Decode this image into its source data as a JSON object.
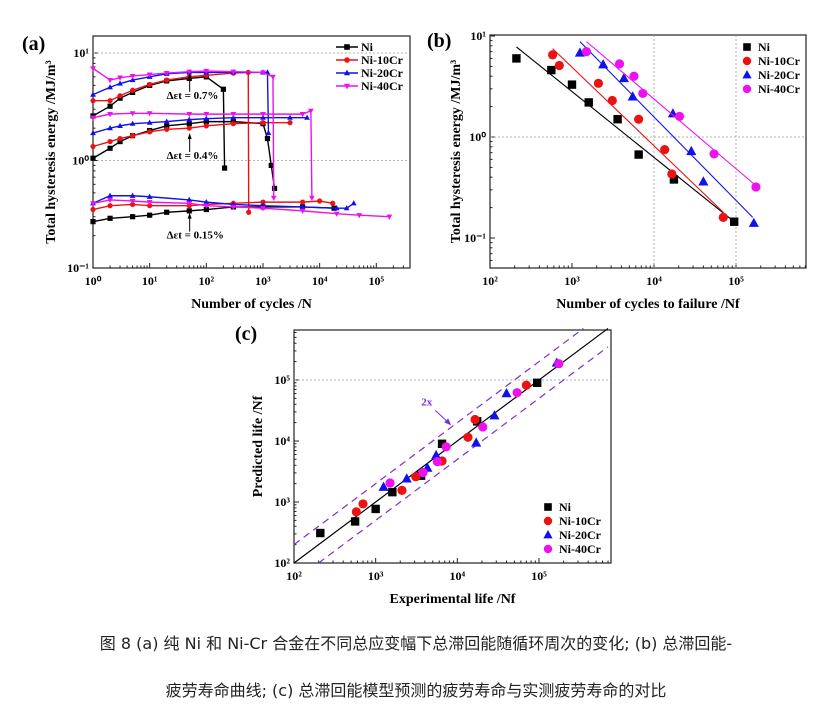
{
  "caption": {
    "line1": "图 8 (a)  纯 Ni 和 Ni-Cr 合金在不同总应变幅下总滞回能随循环周次的变化; (b)  总滞回能-",
    "line2": "疲劳寿命曲线; (c)  总滞回能模型预测的疲劳寿命与实测疲劳寿命的对比"
  },
  "colors": {
    "Ni": "#000000",
    "Ni-10Cr": "#ee1111",
    "Ni-20Cr": "#1111ee",
    "Ni-40Cr": "#ee11ee",
    "guide": "#7a2fd0"
  },
  "chart_data": [
    {
      "panel": "(a)",
      "type": "line",
      "xlabel": "Number of cycles /N",
      "ylabel": "Total hysteresis energy /MJ/m³",
      "xscale": "log",
      "yscale": "log",
      "xlim": [
        1,
        600000
      ],
      "ylim": [
        0.1,
        15
      ],
      "xticks": [
        "10⁰",
        "10¹",
        "10²",
        "10³",
        "10⁴",
        "10⁵"
      ],
      "yticks": [
        "10⁻¹",
        "10⁰",
        "10¹"
      ],
      "grid": "dotted at y=1 and y=10",
      "legend": {
        "position": "top-right",
        "entries": [
          "Ni",
          "Ni-10Cr",
          "Ni-20Cr",
          "Ni-40Cr"
        ]
      },
      "annotations": [
        {
          "text": "Δεt = 0.7%",
          "x": 45,
          "y": 4.0
        },
        {
          "text": "Δεt = 0.4%",
          "x": 45,
          "y": 1.1
        },
        {
          "text": "Δεt = 0.15%",
          "x": 45,
          "y": 0.2
        }
      ],
      "series": [
        {
          "name": "Ni",
          "strain": "0.7%",
          "x": [
            1,
            2,
            3,
            5,
            10,
            20,
            50,
            100,
            200,
            210
          ],
          "y": [
            2.6,
            3.2,
            3.8,
            4.3,
            5.0,
            5.5,
            5.8,
            6.0,
            4.6,
            0.85
          ]
        },
        {
          "name": "Ni",
          "strain": "0.4%",
          "x": [
            1,
            2,
            3,
            5,
            10,
            20,
            50,
            100,
            300,
            1000,
            1200,
            1400,
            1600
          ],
          "y": [
            1.05,
            1.3,
            1.5,
            1.7,
            1.9,
            2.1,
            2.2,
            2.3,
            2.3,
            2.2,
            1.6,
            0.9,
            0.55
          ]
        },
        {
          "name": "Ni",
          "strain": "0.15%",
          "x": [
            1,
            2,
            5,
            10,
            20,
            50,
            100,
            300,
            1000,
            5000,
            18000
          ],
          "y": [
            0.27,
            0.29,
            0.3,
            0.31,
            0.33,
            0.34,
            0.35,
            0.37,
            0.37,
            0.37,
            0.36
          ]
        },
        {
          "name": "Ni-10Cr",
          "strain": "0.7%",
          "x": [
            1,
            2,
            3,
            5,
            10,
            20,
            50,
            100,
            300,
            550,
            560
          ],
          "y": [
            3.6,
            3.6,
            4.0,
            4.5,
            5.1,
            5.6,
            6.0,
            6.2,
            6.5,
            6.6,
            0.33
          ]
        },
        {
          "name": "Ni-10Cr",
          "strain": "0.4%",
          "x": [
            1,
            2,
            3,
            5,
            10,
            20,
            50,
            100,
            300,
            1000,
            3000
          ],
          "y": [
            1.35,
            1.5,
            1.6,
            1.7,
            1.85,
            1.95,
            2.0,
            2.1,
            2.2,
            2.25,
            2.25
          ]
        },
        {
          "name": "Ni-10Cr",
          "strain": "0.15%",
          "x": [
            1,
            2,
            5,
            10,
            50,
            100,
            300,
            1000,
            5000,
            10000,
            17000
          ],
          "y": [
            0.35,
            0.38,
            0.39,
            0.38,
            0.38,
            0.39,
            0.4,
            0.41,
            0.41,
            0.42,
            0.4
          ]
        },
        {
          "name": "Ni-20Cr",
          "strain": "0.7%",
          "x": [
            1,
            2,
            3,
            5,
            10,
            20,
            50,
            100,
            300,
            1000,
            1200,
            1250
          ],
          "y": [
            4.1,
            4.8,
            5.2,
            5.6,
            6.0,
            6.4,
            6.6,
            6.6,
            6.6,
            6.6,
            6.6,
            1.8
          ]
        },
        {
          "name": "Ni-20Cr",
          "strain": "0.4%",
          "x": [
            1,
            2,
            3,
            5,
            10,
            20,
            50,
            100,
            300,
            1000,
            3000,
            6000
          ],
          "y": [
            1.8,
            2.0,
            2.1,
            2.2,
            2.25,
            2.3,
            2.4,
            2.45,
            2.5,
            2.5,
            2.5,
            2.5
          ]
        },
        {
          "name": "Ni-20Cr",
          "strain": "0.15%",
          "x": [
            1,
            2,
            5,
            10,
            50,
            100,
            300,
            1000,
            5000,
            20000,
            30000,
            40000
          ],
          "y": [
            0.4,
            0.47,
            0.47,
            0.46,
            0.43,
            0.41,
            0.39,
            0.38,
            0.37,
            0.36,
            0.36,
            0.4
          ]
        },
        {
          "name": "Ni-40Cr",
          "strain": "0.7%",
          "x": [
            1,
            2,
            3,
            5,
            10,
            20,
            50,
            100,
            300,
            1000,
            1500,
            1550
          ],
          "y": [
            7.2,
            5.6,
            5.9,
            6.1,
            6.3,
            6.5,
            6.7,
            6.8,
            6.7,
            6.6,
            6.0,
            0.45
          ]
        },
        {
          "name": "Ni-40Cr",
          "strain": "0.4%",
          "x": [
            1,
            2,
            5,
            10,
            50,
            100,
            300,
            1000,
            5000,
            7000,
            7300
          ],
          "y": [
            2.5,
            2.7,
            2.75,
            2.75,
            2.7,
            2.7,
            2.7,
            2.7,
            2.7,
            2.9,
            0.45
          ]
        },
        {
          "name": "Ni-40Cr",
          "strain": "0.15%",
          "x": [
            1,
            2,
            5,
            10,
            50,
            100,
            300,
            1000,
            5000,
            20000,
            50000,
            170000
          ],
          "y": [
            0.4,
            0.43,
            0.42,
            0.41,
            0.4,
            0.38,
            0.37,
            0.36,
            0.34,
            0.32,
            0.31,
            0.3
          ]
        }
      ]
    },
    {
      "panel": "(b)",
      "type": "scatter",
      "xlabel": "Number of cycles to failure /Nf",
      "ylabel": "Total hysteresis energy /MJ/m³",
      "xscale": "log",
      "yscale": "log",
      "xlim": [
        100,
        700000
      ],
      "ylim": [
        0.05,
        10
      ],
      "xticks": [
        "10²",
        "10³",
        "10⁴",
        "10⁵"
      ],
      "yticks": [
        "10⁻¹",
        "10⁰",
        "10¹"
      ],
      "grid": "dotted at x=1e4, x=1e5, y=1",
      "legend": {
        "position": "top-right",
        "entries": [
          "Ni",
          "Ni-10Cr",
          "Ni-20Cr",
          "Ni-40Cr"
        ]
      },
      "series": [
        {
          "name": "Ni",
          "marker": "square",
          "x": [
            210,
            560,
            1000,
            1600,
            3600,
            6500,
            17500,
            95000
          ],
          "y": [
            6.0,
            4.6,
            3.3,
            2.2,
            1.5,
            0.67,
            0.38,
            0.145
          ],
          "fit": [
            [
              210,
              7.8
            ],
            [
              90000,
              0.15
            ]
          ]
        },
        {
          "name": "Ni-10Cr",
          "marker": "circle",
          "x": [
            580,
            700,
            2100,
            3100,
            6500,
            13500,
            16500,
            70000
          ],
          "y": [
            6.5,
            5.1,
            3.4,
            2.3,
            1.5,
            0.75,
            0.43,
            0.16
          ],
          "fit": [
            [
              580,
              7.5
            ],
            [
              70000,
              0.18
            ]
          ]
        },
        {
          "name": "Ni-20Cr",
          "marker": "triangle",
          "x": [
            1250,
            2400,
            4300,
            5500,
            17000,
            28500,
            40000,
            165000
          ],
          "y": [
            6.8,
            5.2,
            3.8,
            2.5,
            1.7,
            0.72,
            0.36,
            0.14
          ],
          "fit": [
            [
              1250,
              8.8
            ],
            [
              160000,
              0.16
            ]
          ]
        },
        {
          "name": "Ni-40Cr",
          "marker": "circle",
          "x": [
            1500,
            3800,
            5700,
            7300,
            20500,
            54000,
            175000
          ],
          "y": [
            7.0,
            5.3,
            4.0,
            2.7,
            1.6,
            0.68,
            0.32
          ],
          "fit": [
            [
              1500,
              8.8
            ],
            [
              175000,
              0.33
            ]
          ]
        }
      ]
    },
    {
      "panel": "(c)",
      "type": "scatter",
      "xlabel": "Experimental life /Nf",
      "ylabel": "Predicted life /Nf",
      "xscale": "log",
      "yscale": "log",
      "xlim": [
        100,
        700000
      ],
      "ylim": [
        100,
        700000
      ],
      "xticks": [
        "10²",
        "10³",
        "10⁴",
        "10⁵"
      ],
      "yticks": [
        "10²",
        "10³",
        "10⁴",
        "10⁵"
      ],
      "grid": "dotted at y=1e5",
      "legend": {
        "position": "bottom-right",
        "entries": [
          "Ni",
          "Ni-10Cr",
          "Ni-20Cr",
          "Ni-40Cr"
        ]
      },
      "annotations": [
        {
          "text": "2x",
          "x": 6000,
          "y": 33000
        }
      ],
      "reference_lines": [
        {
          "type": "solid",
          "factor": 1
        },
        {
          "type": "dashed",
          "factor": 2
        },
        {
          "type": "dashed",
          "factor": 0.5
        }
      ],
      "series": [
        {
          "name": "Ni",
          "marker": "square",
          "x": [
            210,
            560,
            1000,
            1600,
            3600,
            6500,
            17500,
            95000
          ],
          "y": [
            310,
            480,
            770,
            1450,
            2700,
            9000,
            21000,
            90000
          ]
        },
        {
          "name": "Ni-10Cr",
          "marker": "circle",
          "x": [
            580,
            700,
            2100,
            3100,
            6500,
            13500,
            16500,
            70000
          ],
          "y": [
            690,
            930,
            1550,
            2600,
            4700,
            11500,
            22500,
            82000
          ]
        },
        {
          "name": "Ni-20Cr",
          "marker": "triangle",
          "x": [
            1250,
            2400,
            4300,
            5500,
            17000,
            28500,
            40000,
            165000
          ],
          "y": [
            1750,
            2400,
            3600,
            5800,
            9300,
            26000,
            60000,
            190000
          ]
        },
        {
          "name": "Ni-40Cr",
          "marker": "circle",
          "x": [
            1500,
            3800,
            5700,
            7300,
            20500,
            54000,
            175000
          ],
          "y": [
            2050,
            3050,
            4600,
            8000,
            17000,
            62000,
            185000
          ]
        }
      ]
    }
  ]
}
